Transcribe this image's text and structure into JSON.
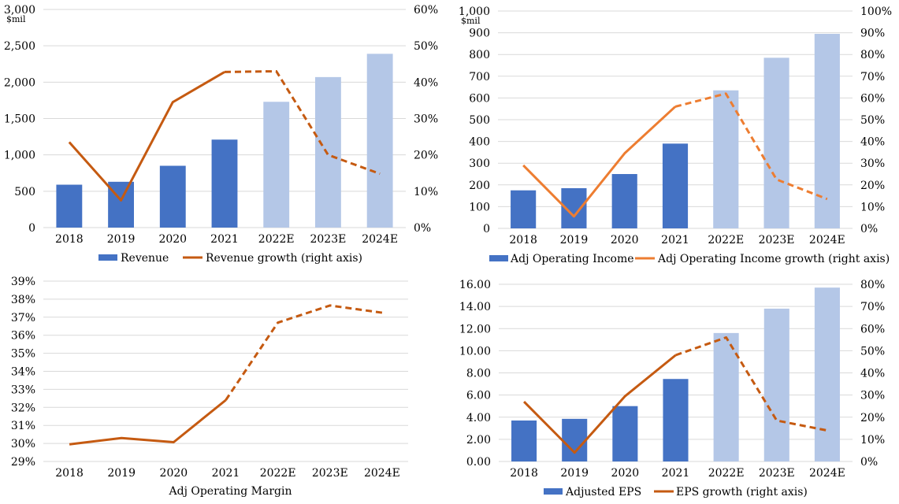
{
  "colors": {
    "bar_actual": "#4472C4",
    "bar_estimate": "#B4C7E7",
    "line_dark_orange": "#C55A11",
    "line_orange": "#ED7D31",
    "gridline": "#D9D9D9",
    "axis_text": "#000000"
  },
  "chart_data": [
    {
      "type": "bar+line",
      "title": "",
      "unit_label": "$mil",
      "categories": [
        "2018",
        "2019",
        "2020",
        "2021",
        "2022E",
        "2023E",
        "2024E"
      ],
      "estimate_from_index": 4,
      "y_left": {
        "min": 0,
        "max": 3000,
        "step": 500,
        "tick_labels": [
          "0",
          "500",
          "1,000",
          "1,500",
          "2,000",
          "2,500",
          "3,000"
        ]
      },
      "y_right": {
        "min": 0,
        "max": 60,
        "step": 10,
        "tick_labels": [
          "0%",
          "10%",
          "20%",
          "30%",
          "40%",
          "50%",
          "60%"
        ]
      },
      "bar_series": {
        "name": "Revenue",
        "values": [
          590,
          630,
          850,
          1210,
          1730,
          2070,
          2390
        ]
      },
      "line_series": {
        "name": "Revenue growth (right axis)",
        "color_key": "line_dark_orange",
        "values": [
          23.5,
          7.5,
          34.5,
          42.8,
          43.0,
          20.0,
          14.8
        ]
      },
      "legend": "bottom",
      "grid": true
    },
    {
      "type": "bar+line",
      "title": "",
      "unit_label": "$mil",
      "categories": [
        "2018",
        "2019",
        "2020",
        "2021",
        "2022E",
        "2023E",
        "2024E"
      ],
      "estimate_from_index": 4,
      "y_left": {
        "min": 0,
        "max": 1000,
        "step": 100,
        "tick_labels": [
          "0",
          "100",
          "200",
          "300",
          "400",
          "500",
          "600",
          "700",
          "800",
          "900",
          "1,000"
        ]
      },
      "y_right": {
        "min": 0,
        "max": 100,
        "step": 10,
        "tick_labels": [
          "0%",
          "10%",
          "20%",
          "30%",
          "40%",
          "50%",
          "60%",
          "70%",
          "80%",
          "90%",
          "100%"
        ]
      },
      "bar_series": {
        "name": "Adj Operating Income",
        "values": [
          175,
          185,
          250,
          390,
          635,
          785,
          895
        ]
      },
      "line_series": {
        "name": "Adj Operating Income growth (right axis)",
        "color_key": "line_orange",
        "values": [
          29,
          5.5,
          34.5,
          56,
          62,
          22.5,
          13.5
        ]
      },
      "legend": "bottom",
      "grid": true
    },
    {
      "type": "line",
      "title": "",
      "xlabel": "Adj Operating Margin",
      "categories": [
        "2018",
        "2019",
        "2020",
        "2021",
        "2022E",
        "2023E",
        "2024E"
      ],
      "estimate_from_index": 4,
      "y_left": {
        "min": 29,
        "max": 39,
        "step": 1,
        "tick_labels": [
          "29%",
          "30%",
          "31%",
          "32%",
          "33%",
          "34%",
          "35%",
          "36%",
          "37%",
          "38%",
          "39%"
        ]
      },
      "line_series": {
        "name": "Adj Operating Margin",
        "color_key": "line_dark_orange",
        "values": [
          29.95,
          30.3,
          30.07,
          32.4,
          36.7,
          37.65,
          37.25
        ]
      },
      "legend": "none",
      "grid": true
    },
    {
      "type": "bar+line",
      "title": "",
      "categories": [
        "2018",
        "2019",
        "2020",
        "2021",
        "2022E",
        "2023E",
        "2024E"
      ],
      "estimate_from_index": 4,
      "y_left": {
        "min": 0,
        "max": 16,
        "step": 2,
        "tick_labels": [
          "0.00",
          "2.00",
          "4.00",
          "6.00",
          "8.00",
          "10.00",
          "12.00",
          "14.00",
          "16.00"
        ]
      },
      "y_right": {
        "min": 0,
        "max": 80,
        "step": 10,
        "tick_labels": [
          "0%",
          "10%",
          "20%",
          "30%",
          "40%",
          "50%",
          "60%",
          "70%",
          "80%"
        ]
      },
      "bar_series": {
        "name": "Adjusted EPS",
        "values": [
          3.7,
          3.85,
          5.0,
          7.45,
          11.6,
          13.8,
          15.7
        ]
      },
      "line_series": {
        "name": "EPS growth (right axis)",
        "color_key": "line_dark_orange",
        "values": [
          27,
          4,
          29.5,
          48,
          56,
          18.5,
          14
        ]
      },
      "legend": "bottom",
      "grid": true
    }
  ]
}
